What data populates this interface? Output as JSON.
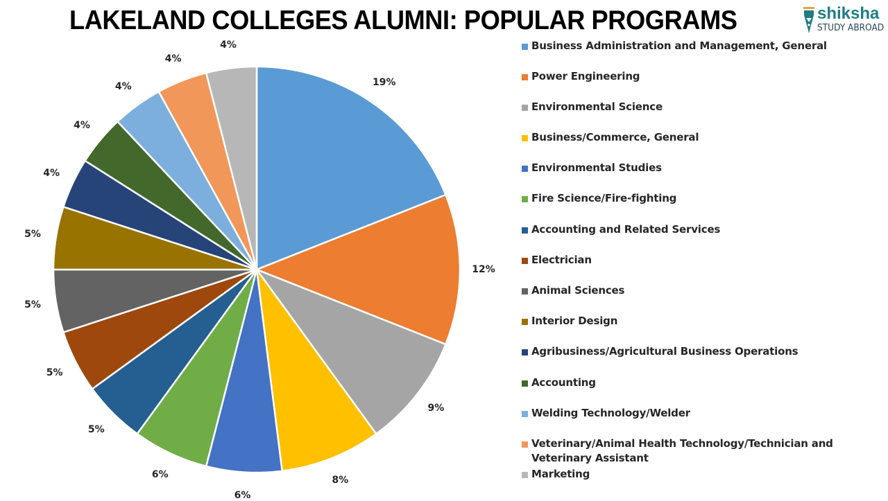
{
  "header": {
    "title": "LAKELAND COLLEGES ALUMNI: POPULAR PROGRAMS"
  },
  "logo": {
    "brand": "shiksha",
    "tagline": "STUDY ABROAD",
    "icon": "pen-nib-icon",
    "brand_color": "#1f7d83"
  },
  "chart_data": {
    "type": "pie",
    "title": "LAKELAND COLLEGES ALUMNI: POPULAR PROGRAMS",
    "start_angle": "12 o'clock",
    "direction": "clockwise",
    "legend_position": "right",
    "categories": [
      "Business Administration and Management, General",
      "Power Engineering",
      "Environmental Science",
      "Business/Commerce, General",
      "Environmental Studies",
      "Fire Science/Fire-fighting",
      "Accounting and Related Services",
      "Electrician",
      "Animal Sciences",
      "Interior Design",
      "Agribusiness/Agricultural Business Operations",
      "Accounting",
      "Welding Technology/Welder",
      "Veterinary/Animal Health Technology/Technician and Veterinary Assistant",
      "Marketing"
    ],
    "values": [
      19,
      12,
      9,
      8,
      6,
      6,
      5,
      5,
      5,
      5,
      4,
      4,
      4,
      4,
      4
    ],
    "labels": [
      "19%",
      "12%",
      "9%",
      "8%",
      "6%",
      "6%",
      "5%",
      "5%",
      "5%",
      "5%",
      "4%",
      "4%",
      "4%",
      "4%",
      "4%"
    ],
    "colors": [
      "#5b9bd5",
      "#ed7d31",
      "#a5a5a5",
      "#ffc000",
      "#4472c4",
      "#70ad47",
      "#255e91",
      "#9e480e",
      "#636363",
      "#997300",
      "#264478",
      "#43682b",
      "#7cafdd",
      "#f1975a",
      "#b7b7b7"
    ]
  }
}
